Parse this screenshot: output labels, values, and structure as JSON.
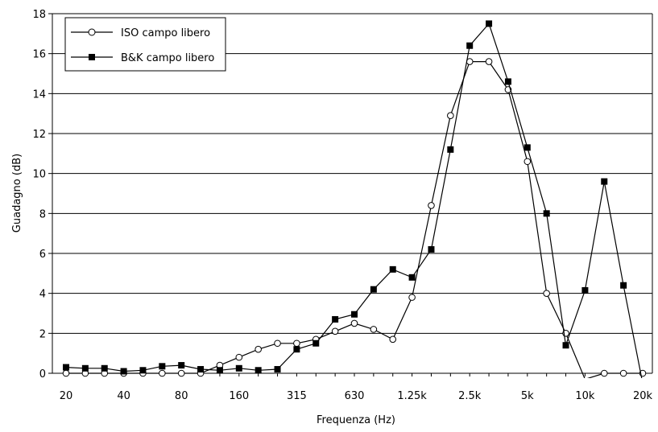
{
  "chart_data": {
    "type": "line",
    "xlabel": "Frequenza (Hz)",
    "ylabel": "Guadagno (dB)",
    "ylim": [
      0,
      18
    ],
    "y_ticks": [
      "0",
      "2",
      "4",
      "6",
      "8",
      "10",
      "12",
      "14",
      "16",
      "18"
    ],
    "x_tick_labels": [
      "20",
      "40",
      "80",
      "160",
      "315",
      "630",
      "1.25k",
      "2.5k",
      "5k",
      "10k",
      "20k"
    ],
    "x": [
      20,
      25,
      31.5,
      40,
      50,
      63,
      80,
      100,
      125,
      160,
      200,
      250,
      315,
      400,
      500,
      630,
      800,
      1000,
      1250,
      1600,
      2000,
      2500,
      3150,
      4000,
      5000,
      6300,
      8000,
      10000,
      12500,
      16000,
      20000
    ],
    "grid": true,
    "legend_position": "top-left",
    "series": [
      {
        "name": "ISO campo libero",
        "marker": "circle-open",
        "values": [
          0,
          0,
          0,
          0,
          0,
          0,
          0,
          0,
          0.4,
          0.8,
          1.2,
          1.5,
          1.5,
          1.7,
          2.1,
          2.5,
          2.2,
          1.7,
          3.8,
          8.4,
          12.9,
          15.6,
          15.6,
          14.2,
          10.6,
          4.0,
          2.0,
          -0.3,
          0,
          0,
          0
        ]
      },
      {
        "name": "B&K campo libero",
        "marker": "square-filled",
        "values": [
          0.3,
          0.25,
          0.25,
          0.1,
          0.15,
          0.35,
          0.4,
          0.2,
          0.15,
          0.25,
          0.15,
          0.2,
          1.2,
          1.5,
          2.7,
          2.95,
          4.2,
          5.2,
          4.8,
          6.2,
          11.2,
          16.4,
          17.5,
          14.6,
          11.3,
          8.0,
          1.4,
          4.15,
          9.6,
          4.4,
          -0.5
        ]
      }
    ],
    "colors": {
      "line": "#000000",
      "background": "#ffffff",
      "grid": "#000000"
    }
  }
}
